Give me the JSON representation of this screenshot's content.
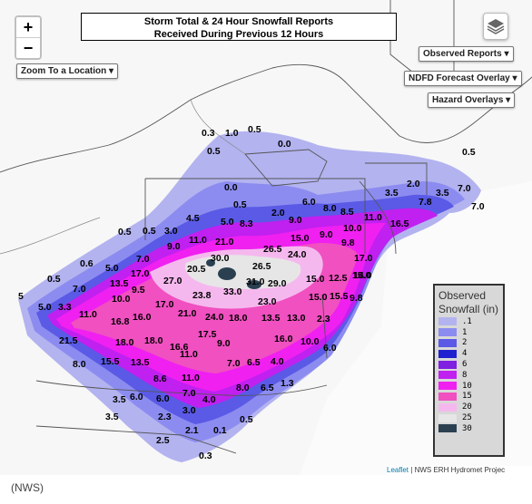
{
  "title": {
    "line1": "Storm Total & 24 Hour Snowfall Reports",
    "line2": "Received During Previous 12 Hours"
  },
  "zoom": {
    "in_label": "+",
    "out_label": "−"
  },
  "controls": {
    "zoom_to_location": "Zoom To a Location",
    "observed_reports": "Observed Reports",
    "ndfd_overlay": "NDFD Forecast Overlay",
    "hazard_overlays": "Hazard Overlays",
    "caret": "▾"
  },
  "legend": {
    "title_line1": "Observed",
    "title_line2": "Snowfall (in)",
    "items": [
      {
        "label": ".1",
        "color": "#b3b3f0"
      },
      {
        "label": "1",
        "color": "#8c8cf0"
      },
      {
        "label": "2",
        "color": "#5a5ae6"
      },
      {
        "label": "4",
        "color": "#2020d0"
      },
      {
        "label": "6",
        "color": "#8020e0"
      },
      {
        "label": "8",
        "color": "#c020f0"
      },
      {
        "label": "10",
        "color": "#f020f0"
      },
      {
        "label": "15",
        "color": "#f050c0"
      },
      {
        "label": "20",
        "color": "#f5b8ee"
      },
      {
        "label": "25",
        "color": "#e6e6e6"
      },
      {
        "label": "30",
        "color": "#2a4050"
      }
    ]
  },
  "snowfall_values": [
    "0.3",
    "1.0",
    "0.5",
    "0.0",
    "0.5",
    "0.5",
    "0.0",
    "2.0",
    "3.5",
    "3.5",
    "7.0",
    "7.0",
    "7.8",
    "4.5",
    "0.5",
    "6.0",
    "8.0",
    "8.5",
    "11.0",
    "16.5",
    "9.0",
    "5.0",
    "8.3",
    "2.0",
    "9.0",
    "10.0",
    "15.0",
    "9.8",
    "0.5",
    "0.5",
    "3.0",
    "11.0",
    "21.0",
    "9.0",
    "26.5",
    "24.0",
    "17.0",
    "15.0",
    "0.6",
    "5.0",
    "7.0",
    "17.0",
    "20.5",
    "30.0",
    "26.5",
    "12.5",
    "14.0",
    "0.5",
    "7.0",
    "13.5",
    "9.5",
    "27.0",
    "31.0",
    "29.0",
    "15.0",
    "15.5",
    "9.8",
    "5",
    "3.3",
    "10.0",
    "23.8",
    "33.0",
    "23.0",
    "15.0",
    "5.0",
    "11.0",
    "16.8",
    "16.0",
    "17.0",
    "21.0",
    "24.0",
    "18.0",
    "13.5",
    "13.0",
    "2.3",
    "21.5",
    "18.0",
    "18.0",
    "16.6",
    "17.5",
    "9.0",
    "16.0",
    "10.0",
    "6.0",
    "8.0",
    "15.5",
    "13.5",
    "11.0",
    "7.0",
    "6.5",
    "4.0",
    "8.6",
    "11.0",
    "1.3",
    "3.5",
    "6.0",
    "6.0",
    "7.0",
    "4.0",
    "8.0",
    "6.5",
    "3.5",
    "2.3",
    "3.0",
    "0.5",
    "2.1",
    "0.1",
    "2.5",
    "0.3"
  ],
  "attribution": {
    "leaflet": "Leaflet",
    "source": "| NWS ERH Hydromet Projec"
  },
  "caption": "(NWS)"
}
